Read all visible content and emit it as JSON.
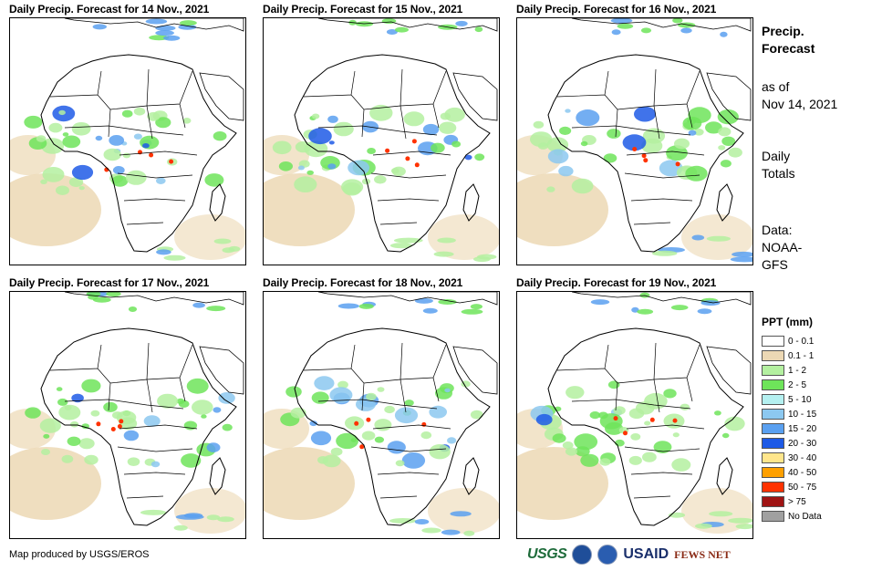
{
  "panels": [
    {
      "title": "Daily Precip. Forecast for 14 Nov., 2021"
    },
    {
      "title": "Daily Precip. Forecast for 15 Nov., 2021"
    },
    {
      "title": "Daily Precip. Forecast for 16 Nov., 2021"
    },
    {
      "title": "Daily Precip. Forecast for 17 Nov., 2021"
    },
    {
      "title": "Daily Precip. Forecast for 18 Nov., 2021"
    },
    {
      "title": "Daily Precip. Forecast for 19 Nov., 2021"
    }
  ],
  "sidebar": {
    "title_line1": "Precip.",
    "title_line2": "Forecast",
    "asof_line1": "as of",
    "asof_line2": "Nov 14, 2021",
    "totals_line1": "Daily",
    "totals_line2": "Totals",
    "data_line1": "Data:",
    "data_line2": "NOAA-",
    "data_line3": "GFS"
  },
  "legend": {
    "title": "PPT (mm)",
    "items": [
      {
        "label": "0 - 0.1",
        "color": "#ffffff"
      },
      {
        "label": "0.1 - 1",
        "color": "#ecd8b4"
      },
      {
        "label": "1 - 2",
        "color": "#b4f0a0"
      },
      {
        "label": "2 - 5",
        "color": "#6ee45a"
      },
      {
        "label": "5 - 10",
        "color": "#b4f0f0"
      },
      {
        "label": "10 - 15",
        "color": "#8cc8f0"
      },
      {
        "label": "15 - 20",
        "color": "#5aa0f0"
      },
      {
        "label": "20 - 30",
        "color": "#1e5ae6"
      },
      {
        "label": "30 - 40",
        "color": "#ffe68c"
      },
      {
        "label": "40 - 50",
        "color": "#ffa000"
      },
      {
        "label": "50 - 75",
        "color": "#ff3200"
      },
      {
        "label": "> 75",
        "color": "#a01414"
      },
      {
        "label": "No Data",
        "color": "#a0a0a0"
      }
    ]
  },
  "footer": {
    "credit": "Map produced by USGS/EROS",
    "logos": {
      "usgs": "USGS",
      "usaid": "USAID",
      "fews": "FEWS NET"
    }
  }
}
